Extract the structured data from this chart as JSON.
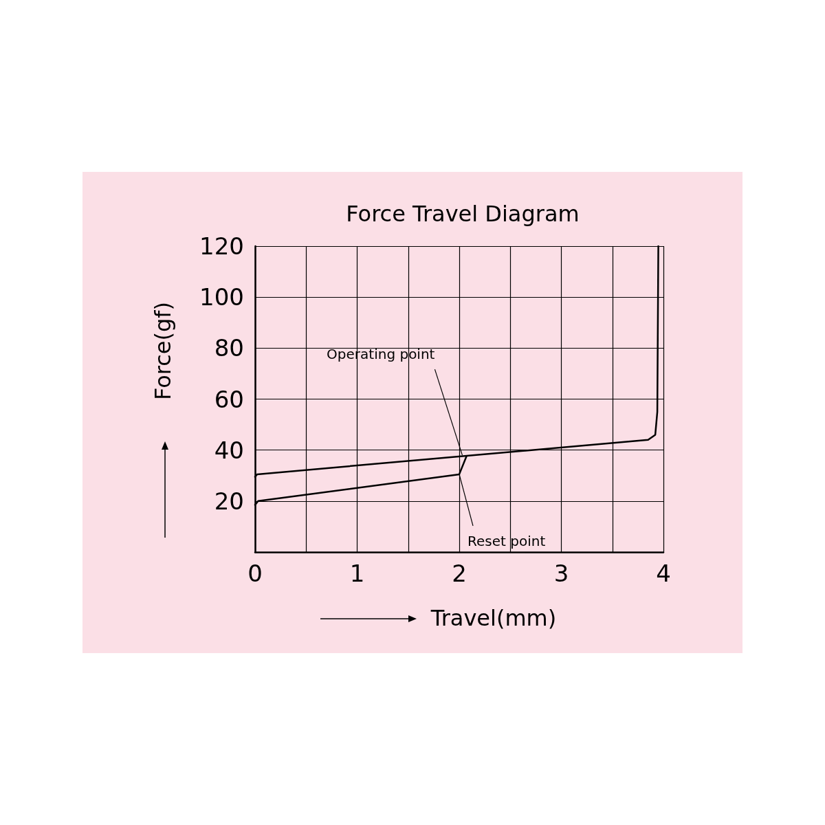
{
  "chart_data": {
    "type": "line",
    "title": "Force Travel Diagram",
    "xlabel": "Travel(mm)",
    "ylabel": "Force(gf)",
    "xlim": [
      0,
      4
    ],
    "xticks": [
      0,
      {
        "value": 0.5,
        "label": null
      },
      1,
      {
        "value": 1.5,
        "label": null
      },
      2,
      {
        "value": 2.5,
        "label": null
      },
      3,
      {
        "value": 3.5,
        "label": null
      },
      4
    ],
    "ylim": [
      0,
      120
    ],
    "yticks": [
      {
        "value": 0,
        "label": null
      },
      20,
      40,
      60,
      80,
      100,
      120
    ],
    "grid": true,
    "marker": "none",
    "line_style": "solid",
    "series": [
      {
        "color": "#000000",
        "x": [
          0,
          0.02,
          3.85,
          3.92,
          3.94,
          3.95
        ],
        "values": [
          29.5,
          30.5,
          44,
          46,
          55,
          120
        ]
      },
      {
        "color": "#000000",
        "x": [
          0,
          0.03,
          2.0,
          2.07
        ],
        "values": [
          18.5,
          20,
          30.5,
          37.5
        ]
      }
    ],
    "annotations": [
      {
        "text": "Operating point",
        "x": 2.03,
        "y": 38
      },
      {
        "text": "Reset point",
        "x": 2.0,
        "y": 30.5
      }
    ]
  }
}
